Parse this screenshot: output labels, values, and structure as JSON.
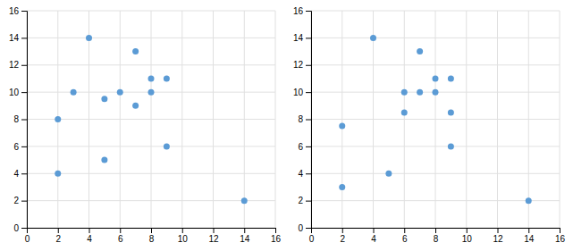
{
  "chart_data": [
    {
      "type": "scatter",
      "x": [
        2,
        2,
        3,
        4,
        5,
        5,
        6,
        7,
        7,
        8,
        8,
        9,
        9,
        14
      ],
      "values": [
        8,
        4,
        10,
        14,
        9.5,
        5,
        10,
        13,
        9,
        11,
        10,
        11,
        6,
        2
      ],
      "color": "#5b9bd5",
      "xlim": [
        0,
        16
      ],
      "ylim": [
        0,
        16
      ],
      "xticks": [
        0,
        2,
        4,
        6,
        8,
        10,
        12,
        14,
        16
      ],
      "yticks": [
        0,
        2,
        4,
        6,
        8,
        10,
        12,
        14,
        16
      ],
      "grid": true
    },
    {
      "type": "scatter",
      "x": [
        2,
        2,
        4,
        5,
        6,
        6,
        7,
        7,
        8,
        8,
        9,
        9,
        9,
        14
      ],
      "values": [
        7.5,
        3,
        14,
        4,
        10,
        8.5,
        13,
        10,
        11,
        10,
        11,
        8.5,
        6,
        2
      ],
      "color": "#5b9bd5",
      "xlim": [
        0,
        16
      ],
      "ylim": [
        0,
        16
      ],
      "xticks": [
        0,
        2,
        4,
        6,
        8,
        10,
        12,
        14,
        16
      ],
      "yticks": [
        0,
        2,
        4,
        6,
        8,
        10,
        12,
        14,
        16
      ],
      "grid": true
    }
  ]
}
